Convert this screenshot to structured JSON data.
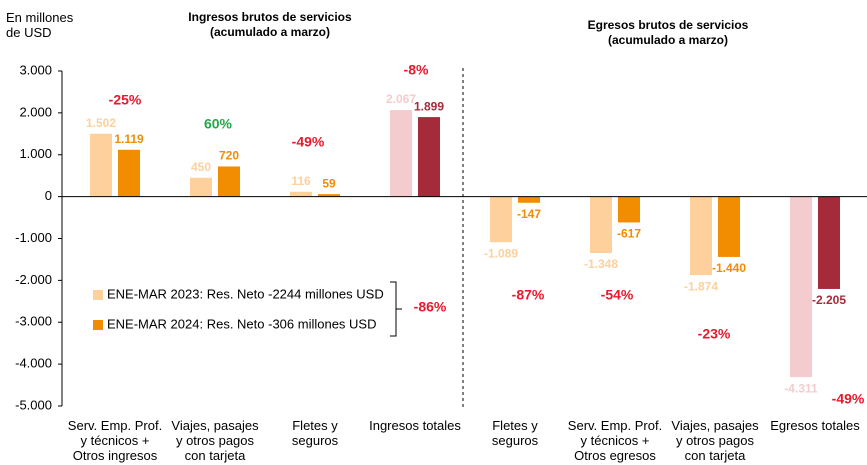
{
  "chart_data": {
    "type": "bar",
    "title": "Ingresos brutos de servicios\n(acumulado a marzo)",
    "subtitle": "Egresos brutos de servicios\n(acumulado a marzo)",
    "y_label": "En millones\nde USD",
    "categories": [
      "Serv. Emp. Prof.\ny técnicos +\nOtros ingresos",
      "Viajes, pasajes\ny otros pagos\ncon tarjeta",
      "Fletes y\nseguros",
      "Ingresos totales",
      "Fletes y\nseguros",
      "Serv. Emp. Prof.\ny técnicos +\nOtros egresos",
      "Viajes, pasajes\ny otros pagos\ncon tarjeta",
      "Egresos totales"
    ],
    "series": [
      {
        "name": "ENE-MAR 2023: Res. Neto -2244 millones USD",
        "color": "#fdd09c",
        "colors": [
          "#fdd09c",
          "#fdd09c",
          "#fdd09c",
          "#f4cccf",
          "#fdd09c",
          "#fdd09c",
          "#fdd09c",
          "#f4cccf"
        ],
        "values": [
          1502,
          450,
          116,
          2067,
          -1089,
          -1348,
          -1874,
          -4311
        ],
        "value_labels": [
          "1.502",
          "450",
          "116",
          "2.067",
          "-1.089",
          "-1.348",
          "-1.874",
          "-4.311"
        ]
      },
      {
        "name": "ENE-MAR 2024: Res. Neto -306 millones USD",
        "color": "#f28c00",
        "colors": [
          "#f28c00",
          "#f28c00",
          "#f28c00",
          "#a52a3a",
          "#f28c00",
          "#f28c00",
          "#f28c00",
          "#a52a3a"
        ],
        "values": [
          1119,
          720,
          59,
          1899,
          -147,
          -617,
          -1440,
          -2205
        ],
        "value_labels": [
          "1.119",
          "720",
          "59",
          "1.899",
          "-147",
          "-617",
          "-1.440",
          "-2.205"
        ]
      }
    ],
    "annotations": [
      {
        "text": "-25%",
        "color": "#e8192c"
      },
      {
        "text": "60%",
        "color": "#21a84a"
      },
      {
        "text": "-49%",
        "color": "#e8192c"
      },
      {
        "text": "-8%",
        "color": "#e8192c"
      },
      {
        "text": "-87%",
        "color": "#e8192c"
      },
      {
        "text": "-54%",
        "color": "#e8192c"
      },
      {
        "text": "-23%",
        "color": "#e8192c"
      },
      {
        "text": "-49%",
        "color": "#e8192c"
      }
    ],
    "legend_annotation": {
      "text": "-86%",
      "color": "#e8192c"
    },
    "ylim": [
      -5000,
      3000
    ],
    "yticks": [
      {
        "value": -5000,
        "label": "-5.000"
      },
      {
        "value": -4000,
        "label": "-4.000"
      },
      {
        "value": -3000,
        "label": "-3.000"
      },
      {
        "value": -2000,
        "label": "-2.000"
      },
      {
        "value": -1000,
        "label": "-1.000"
      },
      0,
      {
        "value": 1000,
        "label": "1.000"
      },
      {
        "value": 2000,
        "label": "2.000"
      },
      {
        "value": 3000,
        "label": "3.000"
      }
    ],
    "legend": "lower left"
  }
}
